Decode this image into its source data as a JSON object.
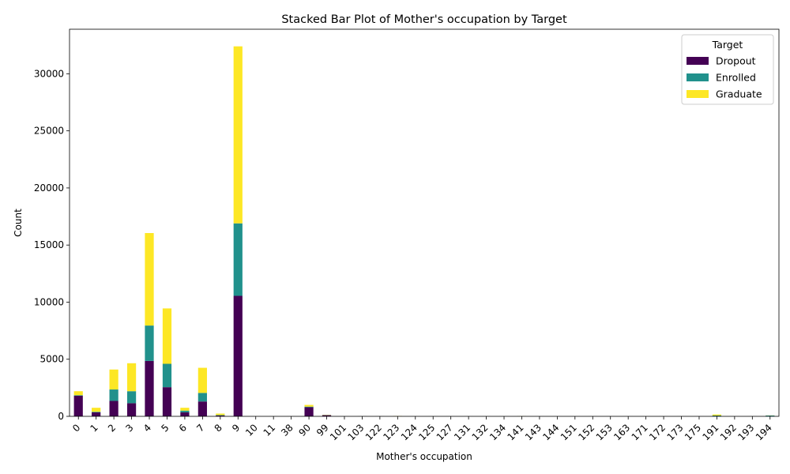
{
  "chart_data": {
    "type": "bar",
    "stacked": true,
    "title": "Stacked Bar Plot of Mother's occupation by Target",
    "xlabel": "Mother's occupation",
    "ylabel": "Count",
    "ylim": [
      0,
      33900
    ],
    "yticks": [
      0,
      5000,
      10000,
      15000,
      20000,
      25000,
      30000
    ],
    "categories": [
      "0",
      "1",
      "2",
      "3",
      "4",
      "5",
      "6",
      "7",
      "8",
      "9",
      "10",
      "11",
      "38",
      "90",
      "99",
      "101",
      "103",
      "122",
      "123",
      "124",
      "125",
      "127",
      "131",
      "132",
      "134",
      "141",
      "143",
      "144",
      "151",
      "152",
      "153",
      "163",
      "171",
      "172",
      "173",
      "175",
      "191",
      "192",
      "193",
      "194"
    ],
    "legend": {
      "title": "Target",
      "position": "top-right"
    },
    "grid": false,
    "series": [
      {
        "name": "Dropout",
        "color": "#440154",
        "values": [
          1800,
          350,
          1350,
          1150,
          4850,
          2550,
          350,
          1300,
          70,
          10550,
          2,
          2,
          2,
          800,
          100,
          2,
          3,
          3,
          10,
          2,
          2,
          2,
          2,
          2,
          2,
          5,
          2,
          2,
          2,
          2,
          2,
          2,
          2,
          2,
          2,
          2,
          30,
          2,
          2,
          10
        ]
      },
      {
        "name": "Enrolled",
        "color": "#21918c",
        "values": [
          50,
          50,
          1000,
          1050,
          3100,
          2050,
          150,
          750,
          40,
          6350,
          1,
          1,
          1,
          50,
          20,
          1,
          2,
          2,
          5,
          1,
          1,
          1,
          1,
          1,
          1,
          3,
          1,
          1,
          1,
          1,
          1,
          1,
          1,
          1,
          1,
          1,
          40,
          1,
          1,
          60
        ]
      },
      {
        "name": "Graduate",
        "color": "#fde725",
        "values": [
          350,
          350,
          1750,
          2450,
          8100,
          4850,
          250,
          2200,
          130,
          15500,
          1,
          1,
          1,
          150,
          20,
          1,
          2,
          2,
          20,
          1,
          1,
          1,
          1,
          1,
          1,
          10,
          1,
          1,
          1,
          1,
          1,
          1,
          1,
          1,
          1,
          1,
          90,
          1,
          1,
          10
        ]
      }
    ]
  }
}
